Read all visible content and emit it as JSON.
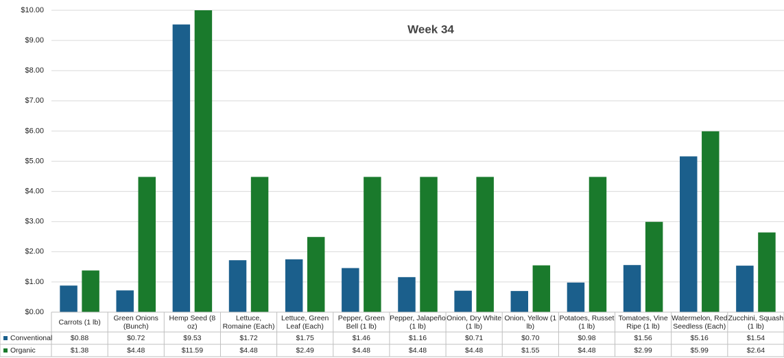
{
  "chart_data": {
    "type": "bar",
    "title": "Week 34",
    "categories": [
      "Carrots (1 lb)",
      "Green Onions (Bunch)",
      "Hemp Seed (8 oz)",
      "Lettuce, Romaine (Each)",
      "Lettuce, Green Leaf (Each)",
      "Pepper, Green Bell (1 lb)",
      "Pepper, Jalapeño (1 lb)",
      "Onion, Dry White (1 lb)",
      "Onion, Yellow (1 lb)",
      "Potatoes, Russet (1 lb)",
      "Tomatoes, Vine Ripe (1 lb)",
      "Watermelon, Red Seedless (Each)",
      "Zucchini, Squash (1 lb)"
    ],
    "series": [
      {
        "name": "Conventional",
        "color": "#1b5f8c",
        "values": [
          0.88,
          0.72,
          9.53,
          1.72,
          1.75,
          1.46,
          1.16,
          0.71,
          0.7,
          0.98,
          1.56,
          5.16,
          1.54
        ],
        "value_labels": [
          "$0.88",
          "$0.72",
          "$9.53",
          "$1.72",
          "$1.75",
          "$1.46",
          "$1.16",
          "$0.71",
          "$0.70",
          "$0.98",
          "$1.56",
          "$5.16",
          "$1.54"
        ]
      },
      {
        "name": "Organic",
        "color": "#1a7a2c",
        "values": [
          1.38,
          4.48,
          11.59,
          4.48,
          2.49,
          4.48,
          4.48,
          4.48,
          1.55,
          4.48,
          2.99,
          5.99,
          2.64
        ],
        "value_labels": [
          "$1.38",
          "$4.48",
          "$11.59",
          "$4.48",
          "$2.49",
          "$4.48",
          "$4.48",
          "$4.48",
          "$1.55",
          "$4.48",
          "$2.99",
          "$5.99",
          "$2.64"
        ]
      }
    ],
    "ylim": [
      0,
      10
    ],
    "yticks": [
      {
        "value": 0,
        "label": "$0.00"
      },
      {
        "value": 1,
        "label": "$1.00"
      },
      {
        "value": 2,
        "label": "$2.00"
      },
      {
        "value": 3,
        "label": "$3.00"
      },
      {
        "value": 4,
        "label": "$4.00"
      },
      {
        "value": 5,
        "label": "$5.00"
      },
      {
        "value": 6,
        "label": "$6.00"
      },
      {
        "value": 7,
        "label": "$7.00"
      },
      {
        "value": 8,
        "label": "$8.00"
      },
      {
        "value": 9,
        "label": "$9.00"
      },
      {
        "value": 10,
        "label": "$10.00"
      }
    ],
    "grid": true
  }
}
